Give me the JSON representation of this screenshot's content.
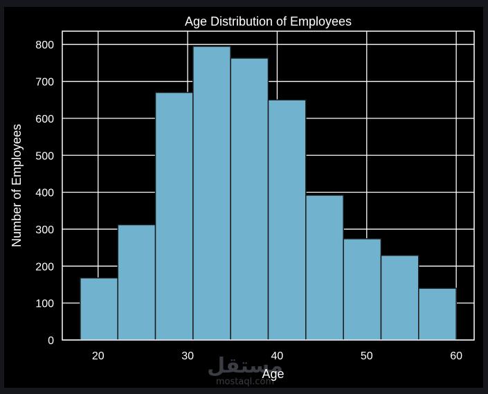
{
  "chart_data": {
    "type": "bar",
    "title": "Age Distribution of Employees",
    "xlabel": "Age",
    "ylabel": "Number of Employees",
    "bin_edges": [
      18,
      22.2,
      26.4,
      30.6,
      34.8,
      39,
      43.2,
      47.4,
      51.6,
      55.8,
      60
    ],
    "values": [
      168,
      312,
      670,
      795,
      763,
      650,
      392,
      274,
      229,
      140
    ],
    "xticks": [
      20,
      30,
      40,
      50,
      60
    ],
    "yticks": [
      0,
      100,
      200,
      300,
      400,
      500,
      600,
      700,
      800
    ],
    "xlim": [
      16,
      62
    ],
    "ylim": [
      0,
      836
    ],
    "grid": true,
    "bar_color": "#71b2cf",
    "background": "#000000"
  },
  "watermark": {
    "arabic": "مستقل",
    "latin": "mostaql.com"
  }
}
